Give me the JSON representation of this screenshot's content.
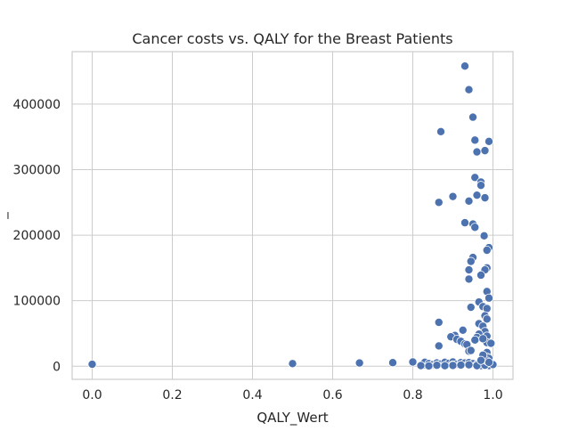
{
  "chart_data": {
    "type": "scatter",
    "title": "Cancer costs vs. QALY for the Breast Patients",
    "xlabel": "QALY_Wert",
    "ylabel": "_",
    "xlim": [
      -0.05,
      1.05
    ],
    "ylim": [
      -20000,
      480000
    ],
    "xticks": [
      0.0,
      0.2,
      0.4,
      0.6,
      0.8,
      1.0
    ],
    "xtick_labels": [
      "0.0",
      "0.2",
      "0.4",
      "0.6",
      "0.8",
      "1.0"
    ],
    "yticks": [
      0,
      100000,
      200000,
      300000,
      400000
    ],
    "ytick_labels": [
      "0",
      "100000",
      "200000",
      "300000",
      "400000"
    ],
    "grid": true,
    "point_color": "#4c72b0",
    "series": [
      {
        "x": [
          0.0,
          0.5,
          0.667,
          0.75,
          0.8,
          0.83,
          0.83,
          0.84,
          0.85,
          0.86,
          0.86,
          0.87,
          0.88,
          0.88,
          0.89,
          0.9,
          0.9,
          0.91,
          0.92,
          0.92,
          0.93,
          0.94,
          0.94,
          0.95,
          0.96,
          0.97,
          0.97,
          0.98,
          0.98,
          0.99,
          0.99,
          1.0,
          0.82,
          0.84,
          0.86,
          0.88,
          0.9,
          0.92,
          0.94,
          0.96,
          0.98,
          0.93,
          0.94,
          0.95,
          0.87,
          0.955,
          0.99,
          0.96,
          0.98,
          0.955,
          0.97,
          0.97,
          0.96,
          0.98,
          0.9,
          0.94,
          0.865,
          0.93,
          0.95,
          0.955,
          0.978,
          0.99,
          0.985,
          0.95,
          0.945,
          0.985,
          0.98,
          0.94,
          0.97,
          0.94,
          0.985,
          0.965,
          0.99,
          0.975,
          0.985,
          0.945,
          0.98,
          0.985,
          0.865,
          0.965,
          0.975,
          0.98,
          0.925,
          0.965,
          0.985,
          0.905,
          0.895,
          0.91,
          0.92,
          0.985,
          0.93,
          0.96,
          0.955,
          0.975,
          0.995,
          0.865,
          0.935,
          0.94,
          0.985,
          0.945,
          0.985,
          0.99,
          0.985,
          0.975,
          0.99,
          0.97
        ],
        "y": [
          3000,
          4000,
          5000,
          5500,
          6500,
          2000,
          6000,
          4000,
          2500,
          5000,
          1500,
          3500,
          6000,
          1000,
          4500,
          6500,
          2000,
          3000,
          5500,
          2000,
          5000,
          5500,
          1500,
          4000,
          2500,
          5000,
          1000,
          3500,
          2000,
          5000,
          1000,
          2500,
          1000,
          500,
          1500,
          800,
          1200,
          1800,
          2200,
          900,
          1500,
          458000,
          422000,
          380000,
          358000,
          345000,
          343000,
          327000,
          329000,
          288000,
          281000,
          276000,
          261000,
          257000,
          259000,
          252000,
          250000,
          219000,
          217000,
          212000,
          199000,
          181000,
          177000,
          166000,
          160000,
          150000,
          147000,
          147000,
          139000,
          133000,
          114000,
          98000,
          104000,
          91000,
          88000,
          90000,
          77000,
          72000,
          67000,
          65000,
          61000,
          53000,
          55000,
          49000,
          46000,
          47000,
          45000,
          41000,
          38000,
          36000,
          34000,
          44000,
          40000,
          42000,
          35000,
          31000,
          33000,
          23000,
          21000,
          24000,
          14000,
          12000,
          8000,
          17000,
          6000,
          9000
        ]
      }
    ]
  }
}
